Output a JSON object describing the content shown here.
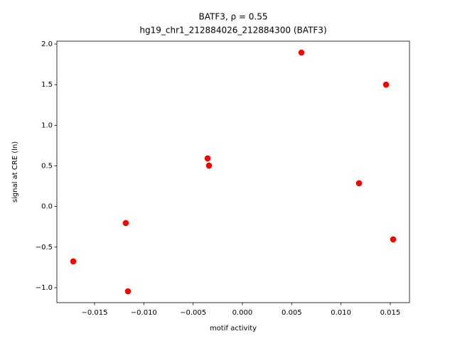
{
  "chart_data": {
    "type": "scatter",
    "title": [
      "BATF3, ρ = 0.55",
      "hg19_chr1_212884026_212884300 (BATF3)"
    ],
    "x_label": "motif activity",
    "y_label": "signal at CRE (ln)",
    "color": "#ff0000",
    "x": [
      -0.01716,
      -0.01183,
      -0.01161,
      -0.00353,
      -0.00339,
      0.00599,
      0.01183,
      0.01457,
      0.01529
    ],
    "y": [
      -0.676,
      -0.204,
      -1.044,
      0.592,
      0.504,
      1.895,
      0.286,
      1.501,
      -0.405
    ],
    "xlim": [
      -0.01882,
      0.01695
    ],
    "ylim": [
      -1.184,
      2.035
    ],
    "xticks": [
      {
        "value": -0.015,
        "label": "−0.015"
      },
      {
        "value": -0.01,
        "label": "−0.010"
      },
      {
        "value": -0.005,
        "label": "−0.005"
      },
      {
        "value": 0,
        "label": "0.000"
      },
      {
        "value": 0.005,
        "label": "0.005"
      },
      {
        "value": 0.01,
        "label": "0.010"
      },
      {
        "value": 0.015,
        "label": "0.015"
      }
    ],
    "yticks": [
      {
        "value": -1,
        "label": "−1.0"
      },
      {
        "value": -0.5,
        "label": "−0.5"
      },
      {
        "value": 0,
        "label": "0.0"
      },
      {
        "value": 0.5,
        "label": "0.5"
      },
      {
        "value": 1,
        "label": "1.0"
      },
      {
        "value": 1.5,
        "label": "1.5"
      },
      {
        "value": 2,
        "label": "2.0"
      }
    ]
  }
}
